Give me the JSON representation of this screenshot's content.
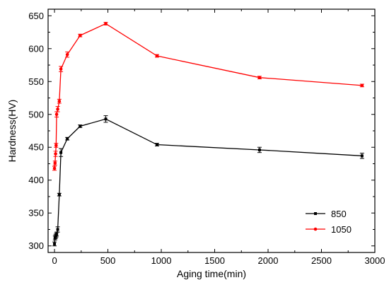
{
  "chart_data": {
    "type": "line",
    "title": "",
    "xlabel": "Aging time(min)",
    "ylabel": "Hardness(HV)",
    "xlim": [
      -60,
      3000
    ],
    "ylim": [
      290,
      660
    ],
    "xticks": [
      0,
      500,
      1000,
      1500,
      2000,
      2500,
      3000
    ],
    "yticks": [
      300,
      350,
      400,
      450,
      500,
      550,
      600,
      650
    ],
    "grid": false,
    "legend_position": "bottom-right",
    "series": [
      {
        "name": "850",
        "color": "#000000",
        "marker": "square",
        "x": [
          0,
          5,
          10,
          15,
          20,
          30,
          45,
          60,
          120,
          240,
          480,
          960,
          1920,
          2880
        ],
        "y": [
          303,
          312,
          314,
          316,
          318,
          325,
          378,
          442,
          463,
          482,
          493,
          454,
          446,
          437
        ],
        "err": [
          3,
          3,
          3,
          3,
          3,
          4,
          2,
          6,
          2,
          2,
          5,
          2,
          4,
          4
        ]
      },
      {
        "name": "1050",
        "color": "#ff0000",
        "marker": "circle",
        "x": [
          0,
          5,
          10,
          15,
          20,
          30,
          45,
          60,
          120,
          240,
          480,
          960,
          1920,
          2880
        ],
        "y": [
          418,
          426,
          440,
          453,
          500,
          508,
          520,
          569,
          591,
          620,
          638,
          589,
          556,
          544
        ],
        "err": [
          3,
          3,
          4,
          3,
          4,
          4,
          3,
          4,
          4,
          2,
          2,
          2,
          2,
          2
        ]
      }
    ]
  }
}
